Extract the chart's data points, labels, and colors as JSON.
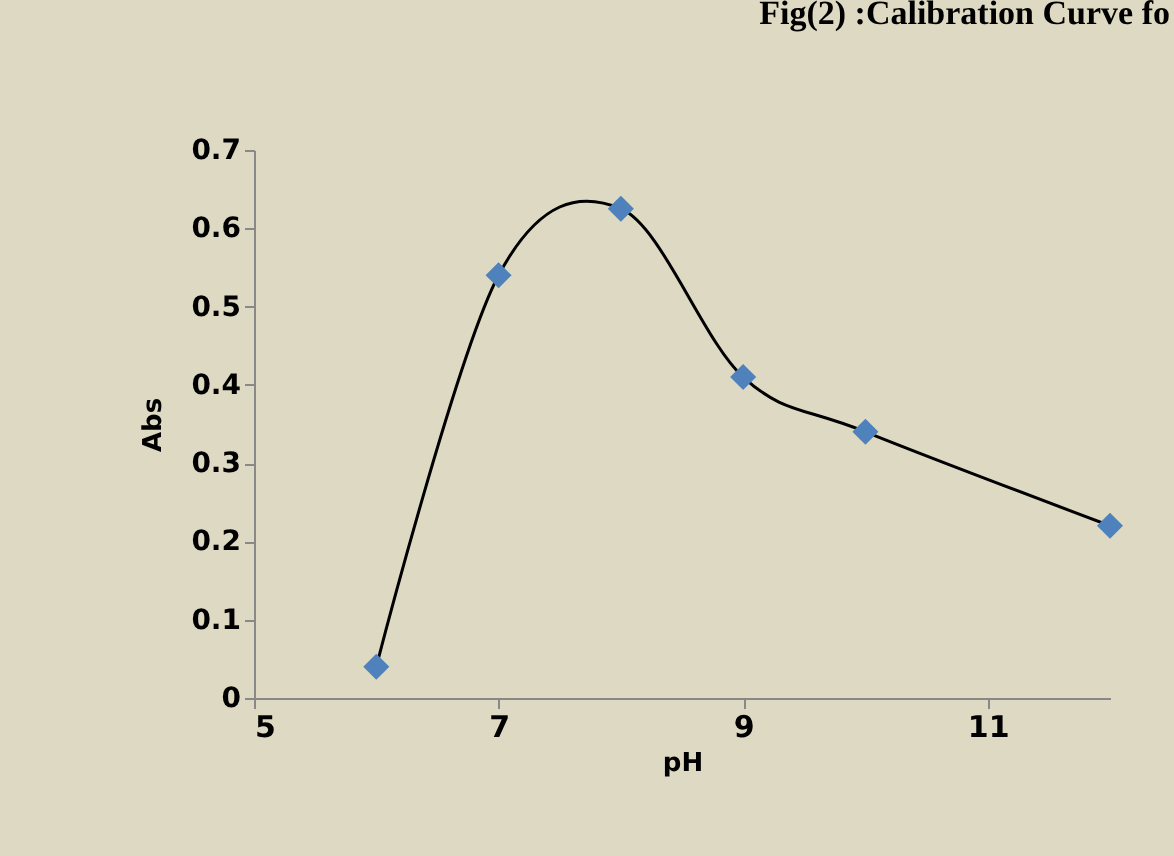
{
  "chart_data": {
    "type": "line",
    "title": "Fig(2) :Calibration Curve fo",
    "xlabel": "pH",
    "ylabel": "Abs",
    "x": [
      6,
      7,
      8,
      9,
      10,
      12
    ],
    "series": [
      {
        "color": "#000000",
        "marker": "none",
        "values": [
          0.04,
          0.54,
          0.625,
          0.41,
          0.34,
          0.22
        ]
      },
      {
        "type": "scatter",
        "color": "#4f81bd",
        "marker": "diamond",
        "values": [
          0.04,
          0.54,
          0.625,
          0.41,
          0.34,
          0.22
        ]
      }
    ],
    "xlim": [
      5,
      12
    ],
    "xticks": [
      5,
      7,
      9,
      11
    ],
    "ylim": [
      0,
      0.7
    ],
    "yticks": [
      0,
      0.1,
      0.2,
      0.3,
      0.4,
      0.5,
      0.6,
      0.7
    ],
    "grid": false
  }
}
